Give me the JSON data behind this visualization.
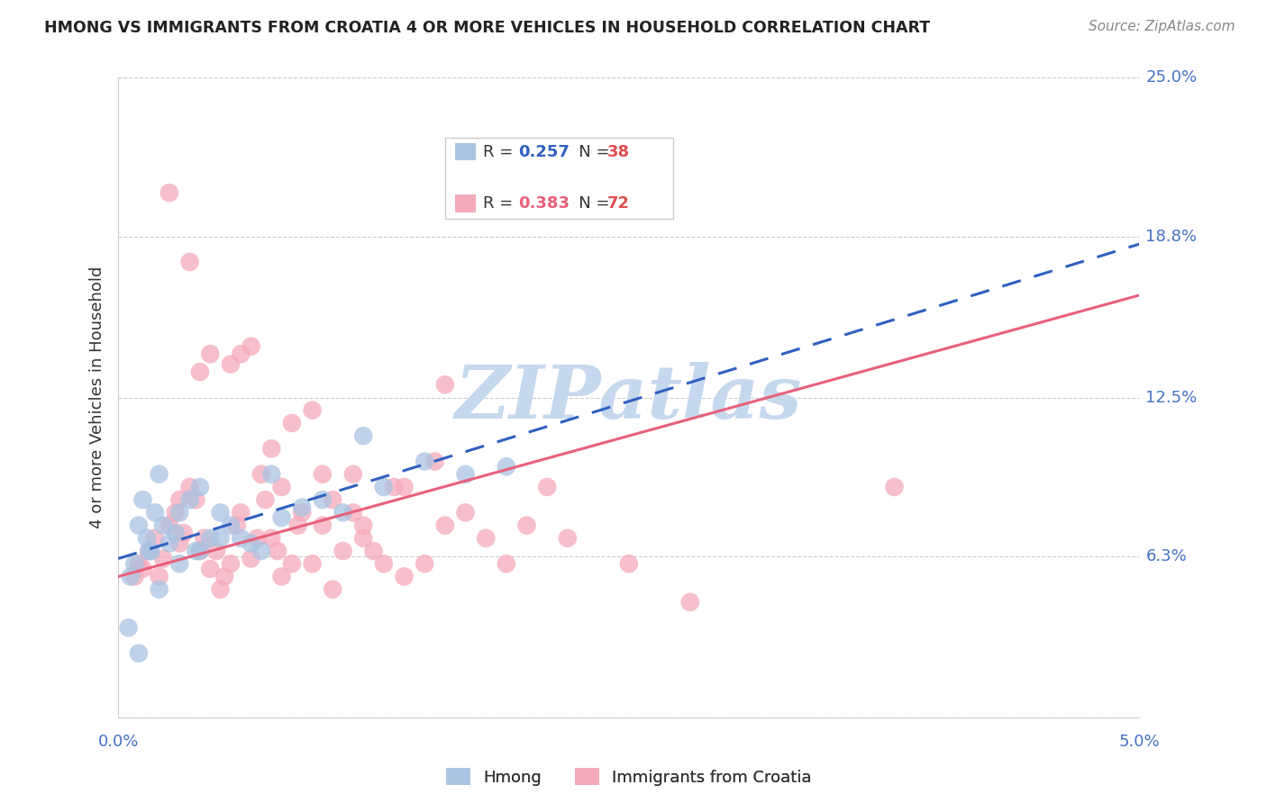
{
  "title": "HMONG VS IMMIGRANTS FROM CROATIA 4 OR MORE VEHICLES IN HOUSEHOLD CORRELATION CHART",
  "source": "Source: ZipAtlas.com",
  "ylabel": "4 or more Vehicles in Household",
  "xmin": 0.0,
  "xmax": 5.0,
  "ymin": 0.0,
  "ymax": 25.0,
  "ytick_vals": [
    0.0,
    6.3,
    12.5,
    18.8,
    25.0
  ],
  "ytick_labels": [
    "",
    "6.3%",
    "12.5%",
    "18.8%",
    "25.0%"
  ],
  "xtick_vals": [
    0.0,
    5.0
  ],
  "xtick_labels": [
    "0.0%",
    "5.0%"
  ],
  "hmong_R": "0.257",
  "hmong_N": "38",
  "croatia_R": "0.383",
  "croatia_N": "72",
  "hmong_scatter_color": "#aac4e2",
  "croatia_scatter_color": "#f5aabb",
  "hmong_line_color": "#3060c0",
  "croatia_line_color": "#e8607a",
  "hmong_line_style": "dashed",
  "croatia_line_style": "solid",
  "watermark_text": "ZIPatlas",
  "watermark_color": "#c5d8ee",
  "title_color": "#222222",
  "source_color": "#888888",
  "ylabel_color": "#333333",
  "tick_label_color": "#4472c4",
  "grid_color": "#cccccc",
  "legend_edge_color": "#cccccc",
  "hmong_scatter_x": [
    0.1,
    0.12,
    0.14,
    0.16,
    0.18,
    0.08,
    0.06,
    0.05,
    0.1,
    0.15,
    0.2,
    0.22,
    0.25,
    0.28,
    0.3,
    0.35,
    0.38,
    0.4,
    0.45,
    0.5,
    0.55,
    0.6,
    0.65,
    0.7,
    0.75,
    0.8,
    0.9,
    1.0,
    1.1,
    1.2,
    1.3,
    1.5,
    1.7,
    1.9,
    0.2,
    0.3,
    0.5,
    0.4
  ],
  "hmong_scatter_y": [
    7.5,
    8.5,
    7.0,
    6.5,
    8.0,
    6.0,
    5.5,
    3.5,
    2.5,
    6.5,
    9.5,
    7.5,
    6.8,
    7.2,
    8.0,
    8.5,
    6.5,
    9.0,
    7.0,
    8.0,
    7.5,
    7.0,
    6.8,
    6.5,
    9.5,
    7.8,
    8.2,
    8.5,
    8.0,
    11.0,
    9.0,
    10.0,
    9.5,
    9.8,
    5.0,
    6.0,
    7.0,
    6.5
  ],
  "croatia_scatter_x": [
    0.08,
    0.1,
    0.12,
    0.15,
    0.18,
    0.2,
    0.22,
    0.25,
    0.28,
    0.3,
    0.32,
    0.35,
    0.38,
    0.4,
    0.42,
    0.45,
    0.48,
    0.5,
    0.52,
    0.55,
    0.58,
    0.6,
    0.65,
    0.68,
    0.7,
    0.72,
    0.75,
    0.78,
    0.8,
    0.85,
    0.88,
    0.9,
    0.95,
    1.0,
    1.05,
    1.1,
    1.15,
    1.2,
    1.25,
    1.3,
    1.4,
    1.5,
    1.6,
    1.7,
    1.8,
    1.9,
    2.0,
    2.2,
    2.5,
    2.8,
    0.25,
    0.35,
    0.45,
    0.55,
    0.65,
    0.75,
    0.85,
    0.95,
    1.05,
    1.15,
    1.35,
    1.55,
    0.4,
    0.6,
    0.8,
    1.0,
    1.2,
    1.4,
    1.6,
    2.1,
    3.8,
    0.3
  ],
  "croatia_scatter_y": [
    5.5,
    6.0,
    5.8,
    6.5,
    7.0,
    5.5,
    6.2,
    7.5,
    8.0,
    6.8,
    7.2,
    9.0,
    8.5,
    6.5,
    7.0,
    5.8,
    6.5,
    5.0,
    5.5,
    6.0,
    7.5,
    8.0,
    6.2,
    7.0,
    9.5,
    8.5,
    7.0,
    6.5,
    5.5,
    6.0,
    7.5,
    8.0,
    6.0,
    7.5,
    5.0,
    6.5,
    8.0,
    7.0,
    6.5,
    6.0,
    5.5,
    6.0,
    7.5,
    8.0,
    7.0,
    6.0,
    7.5,
    7.0,
    6.0,
    4.5,
    20.5,
    17.8,
    14.2,
    13.8,
    14.5,
    10.5,
    11.5,
    12.0,
    8.5,
    9.5,
    9.0,
    10.0,
    13.5,
    14.2,
    9.0,
    9.5,
    7.5,
    9.0,
    13.0,
    9.0,
    9.0,
    8.5
  ],
  "hmong_line_x0": 0.0,
  "hmong_line_x1": 5.0,
  "hmong_line_y0": 6.2,
  "hmong_line_y1": 18.5,
  "croatia_line_x0": 0.0,
  "croatia_line_x1": 5.0,
  "croatia_line_y0": 5.5,
  "croatia_line_y1": 16.5
}
